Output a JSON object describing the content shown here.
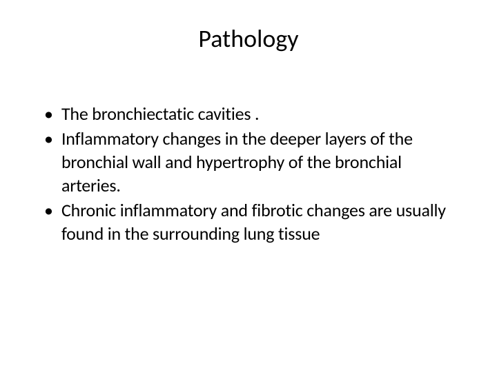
{
  "slide": {
    "title": "Pathology",
    "title_fontsize": 36,
    "title_color": "#000000",
    "body_fontsize": 26,
    "body_color": "#000000",
    "background_color": "#ffffff",
    "bullet_marker": "•",
    "bullets": [
      "The bronchiectatic cavities .",
      "Inflammatory changes in the deeper layers of the bronchial wall and hypertrophy of the bronchial arteries.",
      "Chronic inflammatory and fibrotic changes are usually found in the surrounding lung tissue"
    ]
  }
}
